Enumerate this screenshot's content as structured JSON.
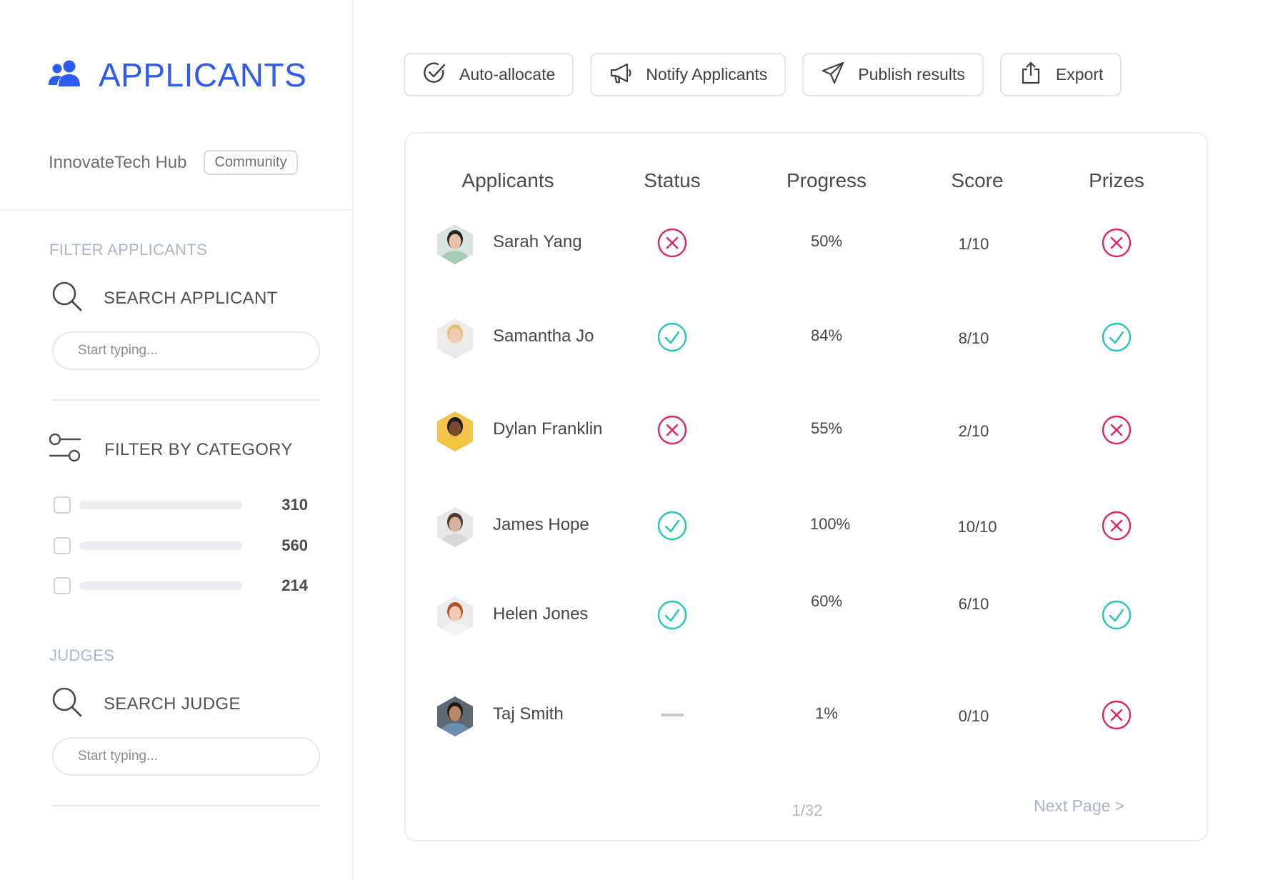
{
  "brand": {
    "title": "APPLICANTS",
    "icon": "users-icon",
    "color": "#2f5cf0"
  },
  "org": {
    "name": "InnovateTech Hub",
    "badge": "Community"
  },
  "filter_applicants": {
    "section_label": "FILTER APPLICANTS",
    "search_label": "SEARCH APPLICANT",
    "placeholder": "Start typing..."
  },
  "category_filter": {
    "label": "FILTER BY CATEGORY",
    "items": [
      {
        "count": "310",
        "checked": false
      },
      {
        "count": "560",
        "checked": false
      },
      {
        "count": "214",
        "checked": false
      }
    ]
  },
  "judges": {
    "section_label": "JUDGES",
    "search_label": "SEARCH JUDGE",
    "placeholder": "Start typing..."
  },
  "toolbar": {
    "auto_allocate": "Auto-allocate",
    "notify": "Notify Applicants",
    "publish": "Publish results",
    "export": "Export"
  },
  "table": {
    "headers": {
      "applicants": "Applicants",
      "status": "Status",
      "progress": "Progress",
      "score": "Score",
      "prizes": "Prizes"
    },
    "rows": [
      {
        "name": "Sarah Yang",
        "status": "rejected",
        "progress": "50%",
        "score": "1/10",
        "prize": "rejected"
      },
      {
        "name": "Samantha Jo",
        "status": "approved",
        "progress": "84%",
        "score": "8/10",
        "prize": "approved"
      },
      {
        "name": "Dylan Franklin",
        "status": "rejected",
        "progress": "55%",
        "score": "2/10",
        "prize": "rejected"
      },
      {
        "name": "James Hope",
        "status": "approved",
        "progress": "100%",
        "score": "10/10",
        "prize": "rejected"
      },
      {
        "name": "Helen Jones",
        "status": "approved",
        "progress": "60%",
        "score": "6/10",
        "prize": "approved"
      },
      {
        "name": "Taj Smith",
        "status": "pending",
        "progress": "1%",
        "score": "0/10",
        "prize": "rejected"
      }
    ],
    "pagination": "1/32",
    "next_page": "Next Page >"
  },
  "colors": {
    "approved": "#1fc8b8",
    "rejected": "#e0245e",
    "pending": "#c4c6ca"
  }
}
